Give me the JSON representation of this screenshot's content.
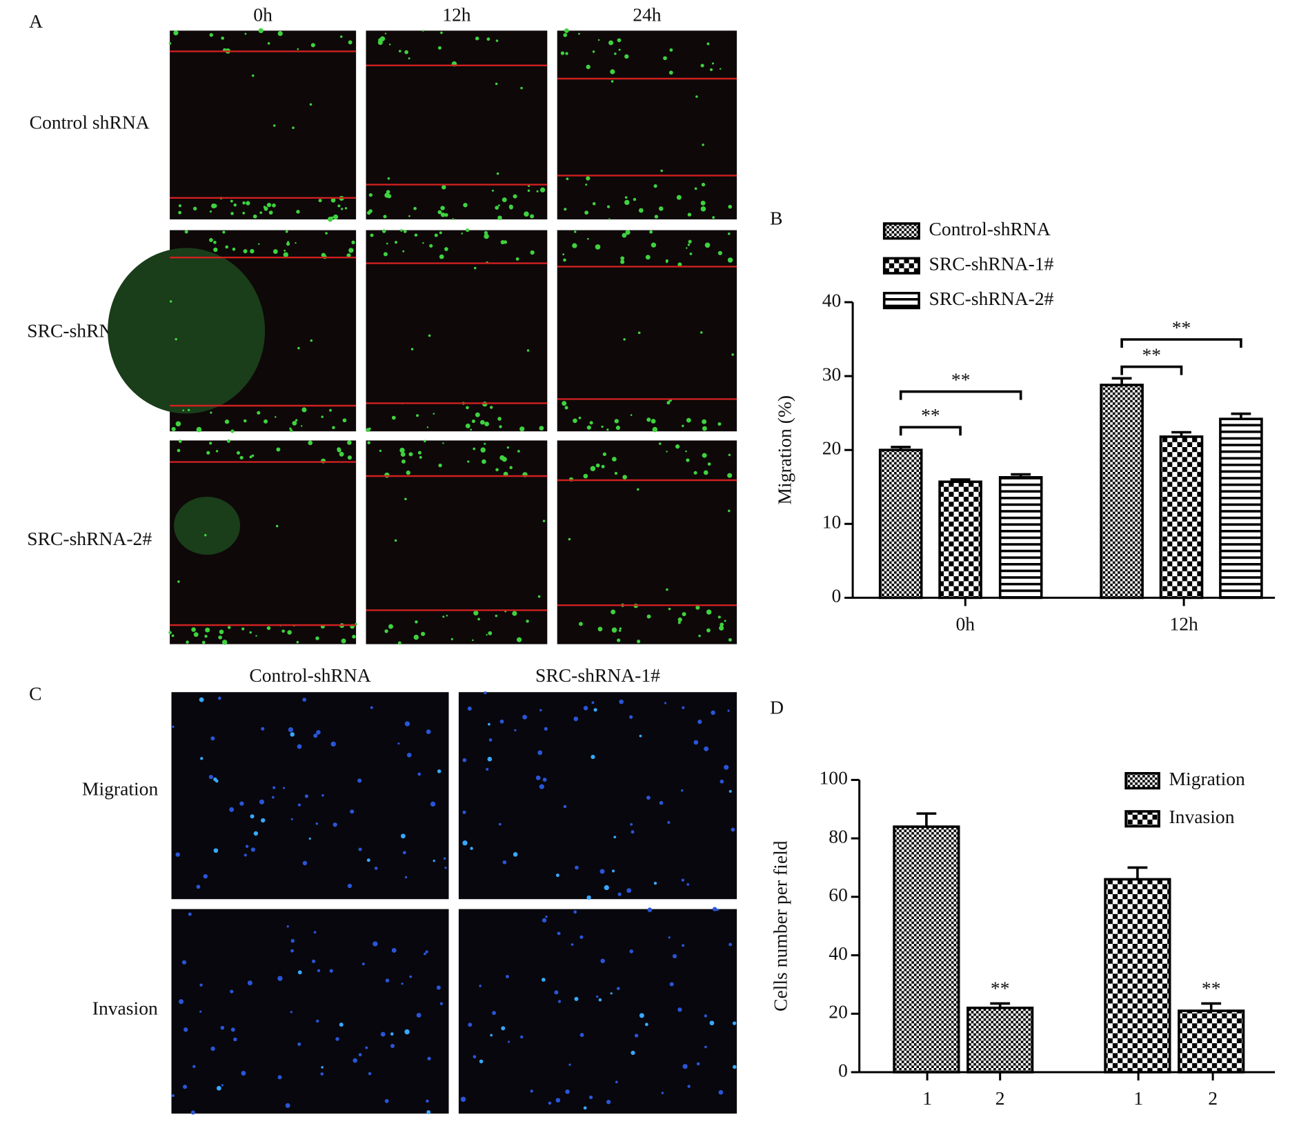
{
  "figure": {
    "panel_labels": [
      "A",
      "B",
      "C",
      "D"
    ],
    "a_columns": [
      "0h",
      "12h",
      "24h"
    ],
    "a_rows": [
      "Control shRNA",
      "SRC-shRNA-1#",
      "SRC-shRNA-2#"
    ],
    "c_columns": [
      "Control-shRNA",
      "SRC-shRNA-1#"
    ],
    "c_rows": [
      "Migration",
      "Invasion"
    ]
  },
  "chart_data": [
    {
      "type": "bar",
      "ylabel": "Migration (%)",
      "categories": [
        "0h",
        "12h"
      ],
      "series": [
        {
          "name": "Control-shRNA",
          "color": "#000000",
          "pattern": "fine-checker",
          "values": [
            20,
            28.8
          ],
          "errors": [
            0.4,
            0.9
          ]
        },
        {
          "name": "SRC-shRNA-1#",
          "color": "#000000",
          "pattern": "checker",
          "values": [
            15.7,
            21.8
          ],
          "errors": [
            0.3,
            0.6
          ]
        },
        {
          "name": "SRC-shRNA-2#",
          "color": "#000000",
          "pattern": "stripes",
          "values": [
            16.3,
            24.2
          ],
          "errors": [
            0.4,
            0.7
          ]
        }
      ],
      "annotations": [
        "**",
        "**",
        "**",
        "**"
      ],
      "ylim": [
        0,
        40
      ],
      "yticks": [
        0,
        10,
        20,
        30,
        40
      ],
      "grid": false,
      "legend": "top"
    },
    {
      "type": "bar",
      "ylabel": "Cells number per field",
      "categories": [
        "1",
        "2"
      ],
      "series": [
        {
          "name": "Migration",
          "color": "#000000",
          "pattern": "fine-checker",
          "values": [
            84,
            22
          ],
          "errors": [
            4.5,
            1.5
          ]
        },
        {
          "name": "Invasion",
          "color": "#000000",
          "pattern": "checker",
          "values": [
            66,
            21
          ],
          "errors": [
            4,
            2.5
          ]
        }
      ],
      "annotations": [
        "**",
        "**"
      ],
      "ylim": [
        0,
        100
      ],
      "yticks": [
        0,
        20,
        40,
        60,
        80,
        100
      ],
      "grid": false,
      "legend": "top-right"
    }
  ]
}
